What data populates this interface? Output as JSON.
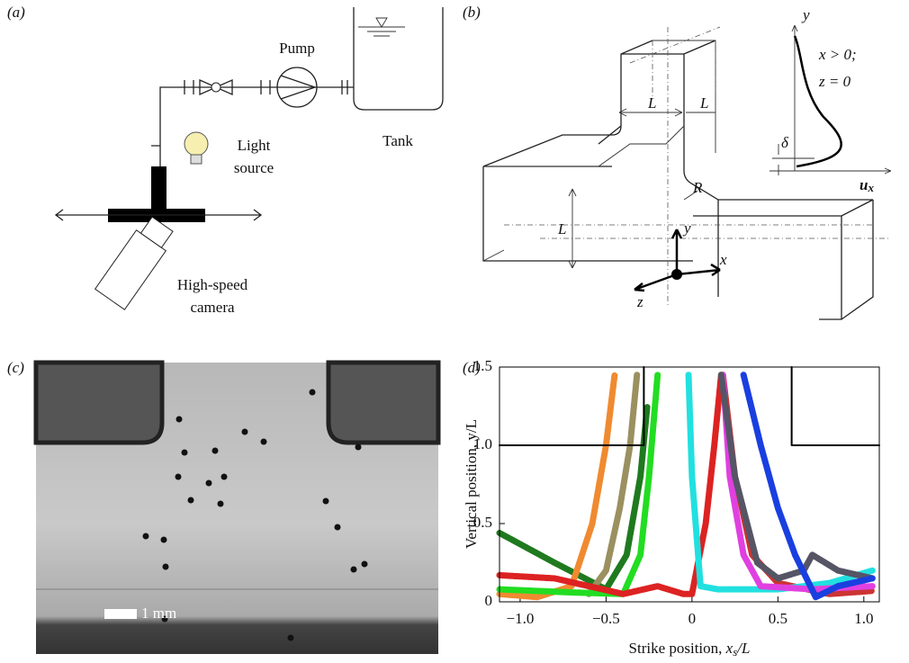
{
  "panel_a": {
    "label": "(a)",
    "pump": "Pump",
    "light": [
      "Light",
      "source"
    ],
    "tank": "Tank",
    "camera": [
      "High-speed",
      "camera"
    ]
  },
  "panel_b": {
    "label": "(b)",
    "widths": [
      "L",
      "L",
      "L"
    ],
    "radius": "R",
    "axes": [
      "y",
      "x",
      "z"
    ],
    "profile_axis": "y",
    "condition": [
      "x > 0;",
      "z = 0"
    ],
    "delta": "δ",
    "velocity": [
      "u",
      "x"
    ]
  },
  "panel_c": {
    "label": "(c)",
    "scale": "1 mm"
  },
  "panel_d": {
    "label": "(d)"
  },
  "chart_data": {
    "type": "line",
    "y_label": "Vertical position, y/L",
    "x_label": [
      "Strike position, ",
      "x",
      "s",
      "/L"
    ],
    "xlim": [
      -1.12,
      1.09
    ],
    "ylim": [
      0,
      1.5
    ],
    "xticks": [
      {
        "value": -1.0,
        "label": "−1.0"
      },
      {
        "value": -0.5,
        "label": "−0.5"
      },
      0,
      0.5,
      {
        "value": 1.0,
        "label": "1.0"
      }
    ],
    "yticks": [
      0,
      0.5,
      {
        "value": 1.0,
        "label": "1.0"
      },
      1.5
    ],
    "walls": [
      {
        "x": [
          -1.12,
          -0.28,
          -0.28
        ],
        "values": [
          1.0,
          1.0,
          1.5
        ]
      },
      {
        "x": [
          0.58,
          0.58,
          1.09
        ],
        "values": [
          1.5,
          1.0,
          1.0
        ]
      }
    ],
    "series": [
      {
        "color": "#1f7a1f",
        "x": [
          -1.12,
          -0.8,
          -0.5,
          -0.38,
          -0.3,
          -0.26
        ],
        "values": [
          0.44,
          0.25,
          0.08,
          0.3,
          0.8,
          1.25
        ]
      },
      {
        "color": "#f08a30",
        "x": [
          -1.12,
          -0.9,
          -0.7,
          -0.58,
          -0.5,
          -0.45
        ],
        "values": [
          0.05,
          0.03,
          0.1,
          0.5,
          1.0,
          1.45
        ]
      },
      {
        "color": "#9a9060",
        "x": [
          -0.6,
          -0.5,
          -0.42,
          -0.36,
          -0.32
        ],
        "values": [
          0.05,
          0.2,
          0.6,
          1.0,
          1.45
        ]
      },
      {
        "color": "#22dd22",
        "x": [
          -1.12,
          -0.7,
          -0.4,
          -0.3,
          -0.25,
          -0.2
        ],
        "values": [
          0.08,
          0.06,
          0.05,
          0.3,
          0.8,
          1.45
        ]
      },
      {
        "color": "#dd2222",
        "x": [
          -1.12,
          -0.8,
          -0.4,
          -0.2,
          -0.05,
          0,
          0.08,
          0.13,
          0.17
        ],
        "values": [
          0.17,
          0.15,
          0.05,
          0.1,
          0.05,
          0.05,
          0.5,
          1.0,
          1.45
        ]
      },
      {
        "color": "#cc3333",
        "x": [
          0.18,
          0.25,
          0.35,
          0.5,
          0.8,
          1.05
        ],
        "values": [
          1.45,
          0.8,
          0.3,
          0.12,
          0.05,
          0.07
        ]
      },
      {
        "color": "#22e0e0",
        "x": [
          -0.02,
          0.0,
          0.05,
          0.15,
          0.5,
          0.8,
          1.05
        ],
        "values": [
          1.45,
          0.8,
          0.1,
          0.08,
          0.08,
          0.12,
          0.2
        ]
      },
      {
        "color": "#e040e0",
        "x": [
          0.18,
          0.22,
          0.3,
          0.4,
          0.7,
          1.05
        ],
        "values": [
          1.45,
          0.8,
          0.3,
          0.1,
          0.08,
          0.1
        ]
      },
      {
        "color": "#555566",
        "x": [
          0.17,
          0.25,
          0.38,
          0.5,
          0.65,
          0.7,
          0.85,
          1.05
        ],
        "values": [
          1.45,
          0.8,
          0.25,
          0.15,
          0.2,
          0.3,
          0.2,
          0.15
        ]
      },
      {
        "color": "#1a3fe0",
        "x": [
          0.3,
          0.4,
          0.5,
          0.6,
          0.72,
          0.85,
          1.05
        ],
        "values": [
          1.45,
          1.0,
          0.6,
          0.3,
          0.03,
          0.1,
          0.15
        ]
      }
    ]
  }
}
